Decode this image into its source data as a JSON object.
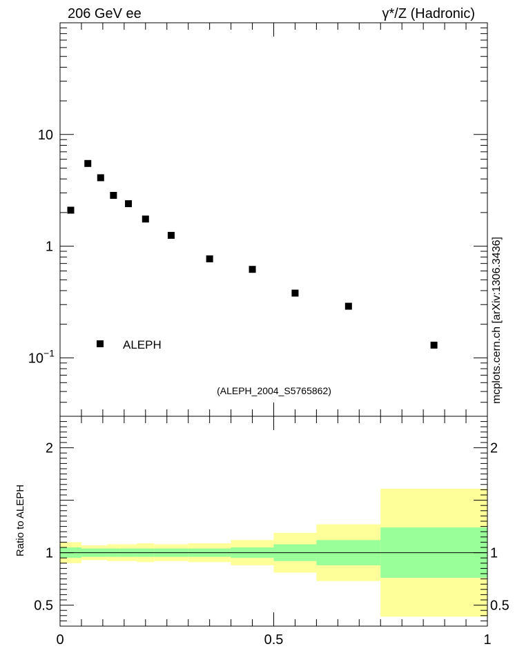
{
  "header": {
    "left_label": "206 GeV ee",
    "right_label": "γ*/Z (Hadronic)"
  },
  "watermark": "mcplots.cern.ch [arXiv:1306.3436]",
  "analysis_tag": "(ALEPH_2004_S5765862)",
  "colors": {
    "data_marker": "#000000",
    "band_inner": "#99ff99",
    "band_outer": "#ffff99",
    "tag_text": "#999999"
  },
  "chart_data": [
    {
      "type": "scatter",
      "yscale": "log",
      "xlim": [
        0,
        1
      ],
      "ylim": [
        0.03,
        100
      ],
      "ytick_labels": [
        {
          "value": 0.1,
          "label": "10",
          "exponent": "−1"
        },
        {
          "value": 1,
          "label": "1",
          "exponent": ""
        },
        {
          "value": 10,
          "label": "10",
          "exponent": ""
        }
      ],
      "legend": {
        "position": "bottom-left",
        "entries": [
          "ALEPH"
        ]
      },
      "series": [
        {
          "name": "ALEPH",
          "x": [
            0.025,
            0.065,
            0.095,
            0.125,
            0.16,
            0.2,
            0.26,
            0.35,
            0.45,
            0.55,
            0.675,
            0.875
          ],
          "y": [
            2.1,
            5.5,
            4.1,
            2.85,
            2.4,
            1.75,
            1.25,
            0.77,
            0.62,
            0.38,
            0.29,
            0.13
          ]
        }
      ]
    },
    {
      "type": "area",
      "xlim": [
        0,
        1
      ],
      "ylim": [
        0.3,
        2.3
      ],
      "ylabel": "Ratio to ALEPH",
      "ytick_labels": [
        {
          "value": 0.5,
          "label": "0.5"
        },
        {
          "value": 1,
          "label": "1"
        },
        {
          "value": 2,
          "label": "2"
        }
      ],
      "xtick_labels": [
        {
          "value": 0,
          "label": "0"
        },
        {
          "value": 0.5,
          "label": "0.5"
        },
        {
          "value": 1,
          "label": "1"
        }
      ],
      "bins": [
        {
          "x0": 0.0,
          "x1": 0.05,
          "inner": [
            0.95,
            1.05
          ],
          "outer": [
            0.9,
            1.1
          ]
        },
        {
          "x0": 0.05,
          "x1": 0.08,
          "inner": [
            0.96,
            1.04
          ],
          "outer": [
            0.93,
            1.07
          ]
        },
        {
          "x0": 0.08,
          "x1": 0.11,
          "inner": [
            0.96,
            1.04
          ],
          "outer": [
            0.93,
            1.07
          ]
        },
        {
          "x0": 0.11,
          "x1": 0.14,
          "inner": [
            0.96,
            1.04
          ],
          "outer": [
            0.92,
            1.08
          ]
        },
        {
          "x0": 0.14,
          "x1": 0.18,
          "inner": [
            0.96,
            1.04
          ],
          "outer": [
            0.92,
            1.08
          ]
        },
        {
          "x0": 0.18,
          "x1": 0.22,
          "inner": [
            0.96,
            1.04
          ],
          "outer": [
            0.91,
            1.09
          ]
        },
        {
          "x0": 0.22,
          "x1": 0.3,
          "inner": [
            0.96,
            1.04
          ],
          "outer": [
            0.92,
            1.08
          ]
        },
        {
          "x0": 0.3,
          "x1": 0.4,
          "inner": [
            0.96,
            1.04
          ],
          "outer": [
            0.91,
            1.09
          ]
        },
        {
          "x0": 0.4,
          "x1": 0.5,
          "inner": [
            0.95,
            1.05
          ],
          "outer": [
            0.88,
            1.12
          ]
        },
        {
          "x0": 0.5,
          "x1": 0.6,
          "inner": [
            0.92,
            1.08
          ],
          "outer": [
            0.81,
            1.19
          ]
        },
        {
          "x0": 0.6,
          "x1": 0.75,
          "inner": [
            0.88,
            1.12
          ],
          "outer": [
            0.73,
            1.27
          ]
        },
        {
          "x0": 0.75,
          "x1": 1.0,
          "inner": [
            0.76,
            1.24
          ],
          "outer": [
            0.39,
            1.61
          ]
        }
      ]
    }
  ]
}
